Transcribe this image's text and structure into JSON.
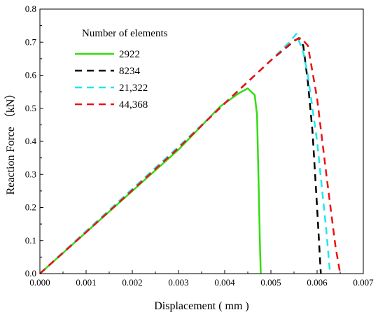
{
  "chart_data": {
    "type": "line",
    "xlabel": "Displacement ( mm )",
    "ylabel": "Reaction Force （kN）",
    "xlim": [
      0.0,
      0.007
    ],
    "ylim": [
      0.0,
      0.8
    ],
    "xticks": [
      0.0,
      0.001,
      0.002,
      0.003,
      0.004,
      0.005,
      0.006,
      0.007
    ],
    "xtick_labels": [
      "0.000",
      "0.001",
      "0.002",
      "0.003",
      "0.004",
      "0.005",
      "0.006",
      "0.007"
    ],
    "yticks": [
      0.0,
      0.1,
      0.2,
      0.3,
      0.4,
      0.5,
      0.6,
      0.7,
      0.8
    ],
    "ytick_labels": [
      "0.0",
      "0.1",
      "0.2",
      "0.3",
      "0.4",
      "0.5",
      "0.6",
      "0.7",
      "0.8"
    ],
    "grid": false,
    "legend": {
      "title": "Number of elements",
      "position": "top-left"
    },
    "series": [
      {
        "name": "2922",
        "color": "#33dd11",
        "dash": "solid",
        "x": [
          0.0,
          0.001,
          0.002,
          0.003,
          0.0039,
          0.0043,
          0.0045,
          0.00465,
          0.0047,
          0.00472,
          0.00474,
          0.00476,
          0.00478
        ],
        "y": [
          0.0,
          0.125,
          0.25,
          0.375,
          0.505,
          0.545,
          0.56,
          0.54,
          0.48,
          0.36,
          0.24,
          0.1,
          0.0
        ]
      },
      {
        "name": "8234",
        "color": "#000000",
        "dash": "dashed",
        "x": [
          0.0,
          0.001,
          0.002,
          0.003,
          0.004,
          0.005,
          0.0055,
          0.0056,
          0.0057,
          0.0058,
          0.0059,
          0.006,
          0.00608
        ],
        "y": [
          0.0,
          0.128,
          0.255,
          0.383,
          0.515,
          0.645,
          0.703,
          0.712,
          0.69,
          0.58,
          0.43,
          0.2,
          0.0
        ]
      },
      {
        "name": "21,322",
        "color": "#22e5f0",
        "dash": "dashed",
        "x": [
          0.0,
          0.001,
          0.002,
          0.003,
          0.004,
          0.005,
          0.0054,
          0.00555,
          0.0057,
          0.0058,
          0.006,
          0.0062,
          0.00628
        ],
        "y": [
          0.0,
          0.128,
          0.256,
          0.384,
          0.515,
          0.645,
          0.7,
          0.725,
          0.67,
          0.6,
          0.4,
          0.13,
          0.0
        ]
      },
      {
        "name": "44,368",
        "color": "#ee1111",
        "dash": "dashed",
        "x": [
          0.0,
          0.001,
          0.002,
          0.003,
          0.004,
          0.005,
          0.0055,
          0.00565,
          0.0058,
          0.006,
          0.0062,
          0.0064,
          0.0065
        ],
        "y": [
          0.0,
          0.125,
          0.252,
          0.38,
          0.515,
          0.645,
          0.705,
          0.713,
          0.69,
          0.53,
          0.3,
          0.08,
          0.0
        ]
      }
    ]
  }
}
